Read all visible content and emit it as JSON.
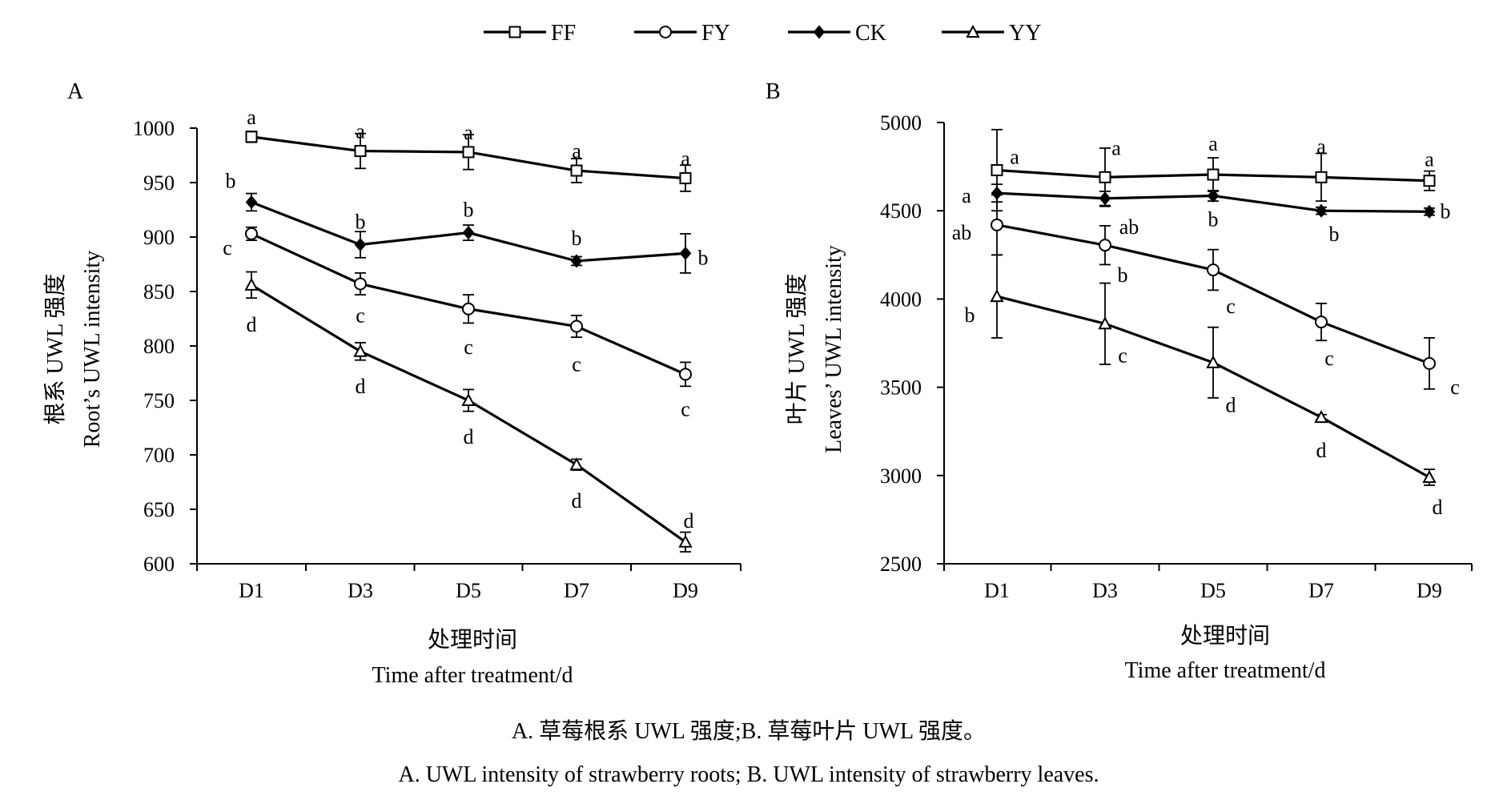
{
  "legend": [
    {
      "name": "FF",
      "marker": "square"
    },
    {
      "name": "FY",
      "marker": "circle"
    },
    {
      "name": "CK",
      "marker": "diamond"
    },
    {
      "name": "YY",
      "marker": "triangle"
    }
  ],
  "captions": {
    "zh": "A. 草莓根系 UWL 强度;B. 草莓叶片 UWL 强度。",
    "en": "A. UWL intensity of strawberry roots; B. UWL intensity of strawberry leaves."
  },
  "chart_data": [
    {
      "panel": "A",
      "type": "line",
      "categories": [
        "D1",
        "D3",
        "D5",
        "D7",
        "D9"
      ],
      "xlabel_zh": "处理时间",
      "xlabel_en": "Time after treatment/d",
      "ylabel_zh": "根系 UWL 强度",
      "ylabel_en": "Root’s UWL intensity",
      "ylim": [
        600,
        1000
      ],
      "yticks": [
        600,
        650,
        700,
        750,
        800,
        850,
        900,
        950,
        1000
      ],
      "legend_position": "top",
      "grid": false,
      "series": [
        {
          "name": "FF",
          "marker": "square",
          "values": [
            992,
            979,
            978,
            961,
            954
          ],
          "errors": [
            5,
            16,
            16,
            11,
            12
          ],
          "letters": [
            "a",
            "a",
            "a",
            "a",
            "a"
          ]
        },
        {
          "name": "CK",
          "marker": "diamond",
          "values": [
            932,
            893,
            904,
            878,
            885
          ],
          "errors": [
            8,
            12,
            7,
            4,
            18
          ],
          "letters": [
            "b",
            "b",
            "b",
            "b",
            "b"
          ]
        },
        {
          "name": "FY",
          "marker": "circle",
          "values": [
            903,
            857,
            834,
            818,
            774
          ],
          "errors": [
            6,
            10,
            13,
            10,
            11
          ],
          "letters": [
            "c",
            "c",
            "c",
            "c",
            "c"
          ]
        },
        {
          "name": "YY",
          "marker": "triangle",
          "values": [
            856,
            795,
            750,
            691,
            620
          ],
          "errors": [
            12,
            8,
            10,
            5,
            9
          ],
          "letters": [
            "d",
            "d",
            "d",
            "d",
            "d"
          ]
        }
      ]
    },
    {
      "panel": "B",
      "type": "line",
      "categories": [
        "D1",
        "D3",
        "D5",
        "D7",
        "D9"
      ],
      "xlabel_zh": "处理时间",
      "xlabel_en": "Time after treatment/d",
      "ylabel_zh": "叶片 UWL 强度",
      "ylabel_en": "Leaves’ UWL intensity",
      "ylim": [
        2500,
        5000
      ],
      "yticks": [
        2500,
        3000,
        3500,
        4000,
        4500,
        5000
      ],
      "legend_position": "top",
      "grid": false,
      "series": [
        {
          "name": "FF",
          "marker": "square",
          "values": [
            4730,
            4690,
            4705,
            4690,
            4670
          ],
          "errors": [
            230,
            165,
            95,
            135,
            55
          ],
          "letters": [
            "a",
            "a",
            "a",
            "a",
            "a"
          ]
        },
        {
          "name": "CK",
          "marker": "diamond",
          "values": [
            4600,
            4570,
            4585,
            4500,
            4495
          ],
          "errors": [
            50,
            40,
            30,
            20,
            20
          ],
          "letters": [
            "a",
            "ab",
            "b",
            "b",
            "b"
          ]
        },
        {
          "name": "FY",
          "marker": "circle",
          "values": [
            4420,
            4305,
            4165,
            3870,
            3635
          ],
          "errors": [
            170,
            110,
            115,
            105,
            145
          ],
          "letters": [
            "ab",
            "b",
            "c",
            "c",
            "c"
          ]
        },
        {
          "name": "YY",
          "marker": "triangle",
          "values": [
            4015,
            3860,
            3640,
            3330,
            2990
          ],
          "errors": [
            235,
            230,
            200,
            15,
            45
          ],
          "letters": [
            "b",
            "c",
            "d",
            "d",
            "d"
          ]
        }
      ]
    }
  ]
}
